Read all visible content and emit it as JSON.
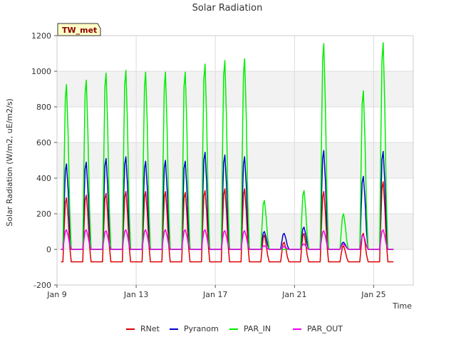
{
  "chart_data": {
    "type": "line",
    "title": "Solar Radiation",
    "xlabel": "Time",
    "ylabel": "Solar Radiation (W/m2, uE/m2/s)",
    "badge": "TW_met",
    "xlim": [
      0,
      18
    ],
    "ylim": [
      -200,
      1200
    ],
    "x_ticks": [
      {
        "x": 0,
        "label": "Jan 9"
      },
      {
        "x": 4,
        "label": "Jan 13"
      },
      {
        "x": 8,
        "label": "Jan 17"
      },
      {
        "x": 12,
        "label": "Jan 21"
      },
      {
        "x": 16,
        "label": "Jan 25"
      }
    ],
    "y_ticks": [
      -200,
      0,
      200,
      400,
      600,
      800,
      1000,
      1200
    ],
    "grid": true,
    "legend_position": "bottom",
    "day_starts": [
      0.3,
      1.3,
      2.3,
      3.3,
      4.3,
      5.3,
      6.3,
      7.3,
      8.3,
      9.3,
      10.3,
      11.3,
      12.3,
      13.3,
      14.3,
      15.3,
      16.3
    ],
    "series": [
      {
        "name": "RNet",
        "color": "#dd0000",
        "night": -70,
        "peaks": [
          290,
          305,
          315,
          325,
          325,
          325,
          320,
          330,
          340,
          340,
          80,
          40,
          90,
          325,
          20,
          90,
          380
        ],
        "points": []
      },
      {
        "name": "Pyranom",
        "color": "#0000cc",
        "night": 0,
        "peaks": [
          480,
          490,
          510,
          520,
          495,
          500,
          495,
          545,
          530,
          520,
          100,
          90,
          125,
          555,
          40,
          410,
          550
        ],
        "points": []
      },
      {
        "name": "PAR_IN",
        "color": "#00ee00",
        "night": 0,
        "peaks": [
          925,
          950,
          990,
          1005,
          995,
          995,
          995,
          1040,
          1060,
          1070,
          275,
          0,
          330,
          1155,
          200,
          890,
          1160
        ],
        "points": []
      },
      {
        "name": "PAR_OUT",
        "color": "#ee00ee",
        "night": 0,
        "peaks": [
          110,
          110,
          105,
          110,
          110,
          110,
          110,
          110,
          105,
          105,
          20,
          15,
          30,
          105,
          30,
          80,
          110
        ],
        "points": []
      }
    ]
  }
}
